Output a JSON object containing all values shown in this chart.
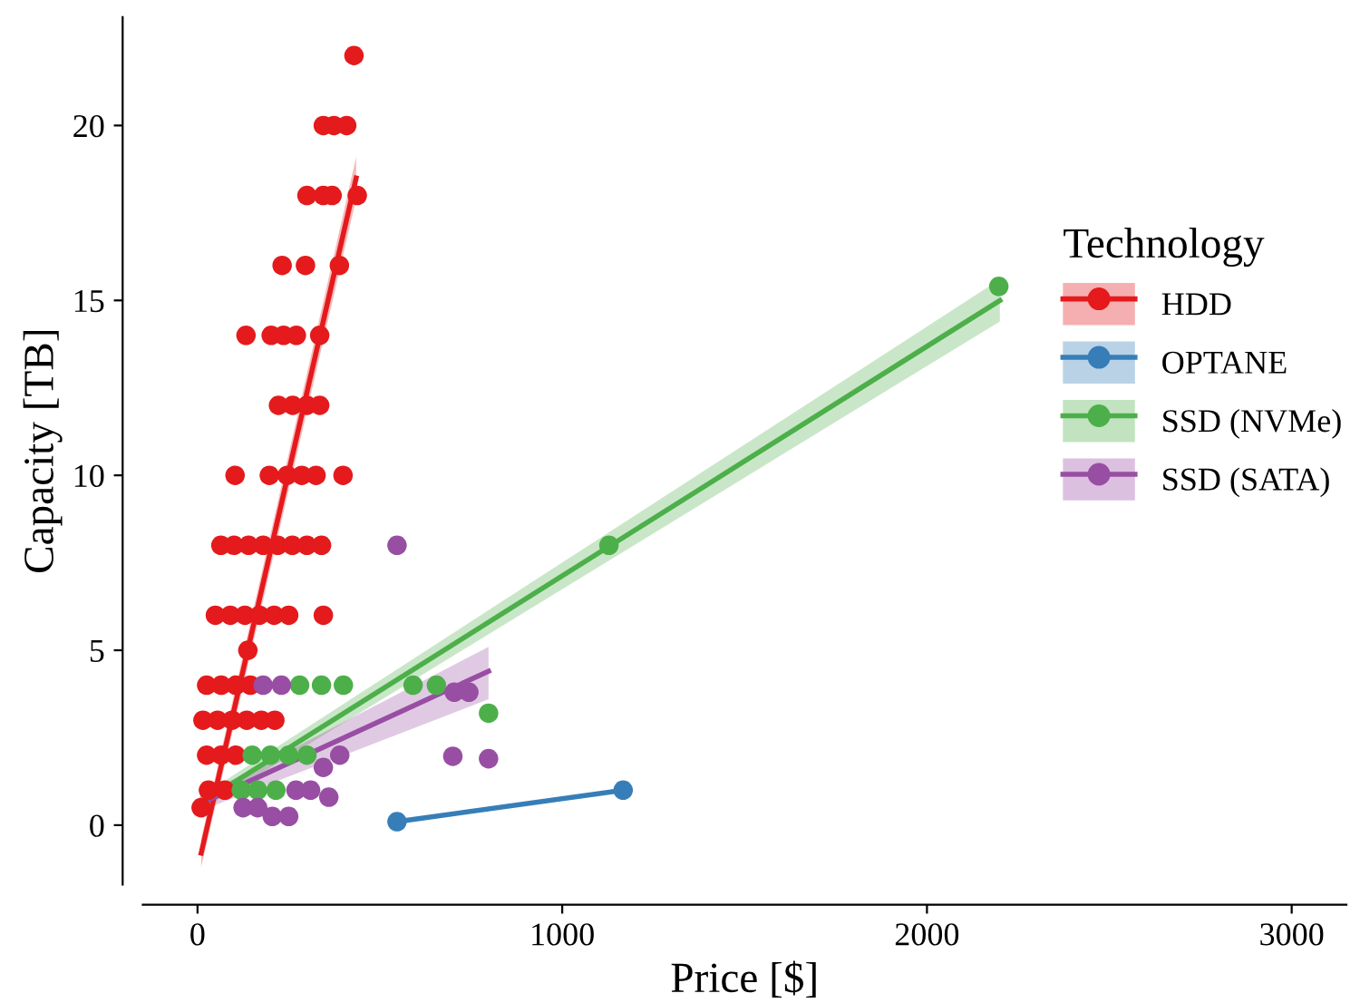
{
  "chart_data": {
    "type": "scatter",
    "xlabel": "Price [$]",
    "ylabel": "Capacity [TB]",
    "legend_title": "Technology",
    "legend": "right",
    "grid": false,
    "marker": "circle",
    "xlim": [
      -150,
      3150
    ],
    "xticks": [
      0,
      1000,
      2000,
      3000
    ],
    "ylim": [
      -1.7,
      23.1
    ],
    "yticks": [
      0,
      5,
      10,
      15,
      20
    ],
    "series": [
      {
        "name": "HDD",
        "color": "#e41a1c",
        "x": [
          429,
          345,
          374,
          409,
          300,
          345,
          369,
          438,
          232,
          296,
          389,
          133,
          202,
          236,
          271,
          335,
          222,
          261,
          300,
          335,
          103,
          197,
          246,
          286,
          325,
          399,
          64,
          100,
          140,
          180,
          220,
          260,
          300,
          340,
          49,
          90,
          130,
          170,
          210,
          250,
          345,
          138,
          25,
          65,
          105,
          145,
          15,
          55,
          95,
          135,
          175,
          212,
          25,
          65,
          105,
          30,
          75,
          10
        ],
        "values": [
          22,
          20,
          20,
          20,
          18,
          18,
          18,
          18,
          16,
          16,
          16,
          14,
          14,
          14,
          14,
          14,
          12,
          12,
          12,
          12,
          10,
          10,
          10,
          10,
          10,
          10,
          8,
          8,
          8,
          8,
          8,
          8,
          8,
          8,
          6,
          6,
          6,
          6,
          6,
          6,
          6,
          5,
          4,
          4,
          4,
          4,
          3,
          3,
          3,
          3,
          3,
          3,
          2,
          2,
          2,
          1,
          1,
          0.5
        ]
      },
      {
        "name": "OPTANE",
        "color": "#377eb8",
        "x": [
          547,
          1167
        ],
        "values": [
          0.1,
          1.0
        ]
      },
      {
        "name": "SSD (NVMe)",
        "color": "#4daf4a",
        "x": [
          2197,
          1128,
          280,
          340,
          400,
          591,
          655,
          798,
          150,
          200,
          250,
          300,
          120,
          165,
          215
        ],
        "values": [
          15.4,
          8,
          4,
          4,
          4,
          4,
          4,
          3.2,
          2,
          2,
          2,
          2,
          1,
          1,
          1
        ]
      },
      {
        "name": "SSD (SATA)",
        "color": "#984ea3",
        "x": [
          547,
          180,
          230,
          704,
          744,
          390,
          700,
          798,
          345,
          270,
          310,
          360,
          125,
          165,
          205,
          250
        ],
        "values": [
          8,
          4,
          4,
          3.8,
          3.8,
          2,
          1.97,
          1.9,
          1.65,
          1,
          1,
          0.8,
          0.5,
          0.5,
          0.25,
          0.25
        ]
      },
      {
        "type": "line",
        "marker": "none",
        "color": "#e41a1c",
        "x": [
          10,
          435
        ],
        "values": [
          -0.8,
          18.5
        ],
        "lower": [
          -1.2,
          17.9
        ],
        "upper": [
          -0.4,
          19.1
        ]
      },
      {
        "type": "line",
        "marker": "none",
        "color": "#377eb8",
        "x": [
          547,
          1167
        ],
        "values": [
          0.1,
          1.0
        ]
      },
      {
        "type": "line",
        "marker": "none",
        "color": "#4daf4a",
        "x": [
          5,
          2200
        ],
        "values": [
          0.6,
          15.0
        ],
        "lower": [
          0.4,
          14.4
        ],
        "upper": [
          0.8,
          15.6
        ]
      },
      {
        "type": "line",
        "marker": "none",
        "color": "#984ea3",
        "x": [
          5,
          798
        ],
        "values": [
          0.6,
          4.4
        ],
        "lower": [
          0.4,
          3.6
        ],
        "upper": [
          0.8,
          5.1
        ]
      }
    ]
  }
}
